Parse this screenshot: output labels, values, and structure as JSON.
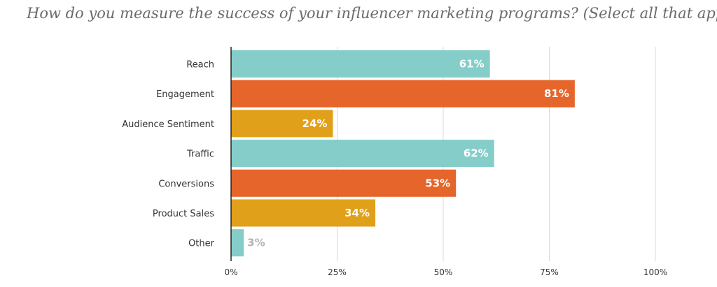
{
  "title": "How do you measure the success of your influencer marketing programs? (Select all that apply)",
  "chart_data": {
    "type": "bar",
    "orientation": "horizontal",
    "title": "How do you measure the success of your influencer marketing programs? (Select all that apply)",
    "categories": [
      "Reach",
      "Engagement",
      "Audience Sentiment",
      "Traffic",
      "Conversions",
      "Product Sales",
      "Other"
    ],
    "values": [
      61,
      81,
      24,
      62,
      53,
      34,
      3
    ],
    "data_labels": [
      "61%",
      "81%",
      "24%",
      "62%",
      "53%",
      "34%",
      "3%"
    ],
    "bar_colors": [
      "#84cdc8",
      "#e5652a",
      "#e0a019",
      "#84cdc8",
      "#e5652a",
      "#e0a019",
      "#84cdc8"
    ],
    "xlim": [
      0,
      100
    ],
    "x_ticks": [
      0,
      25,
      50,
      75,
      100
    ],
    "x_tick_labels": [
      "0%",
      "25%",
      "50%",
      "75%",
      "100%"
    ],
    "xlabel": "",
    "ylabel": "",
    "grid": "vertical",
    "legend": "none",
    "colors": {
      "teal": "#84cdc8",
      "orange": "#e5652a",
      "gold": "#e0a019",
      "grid": "#d9d9d9",
      "axis": "#222222",
      "label_inside": "#ffffff",
      "label_outside": "#b3b3b3"
    }
  }
}
